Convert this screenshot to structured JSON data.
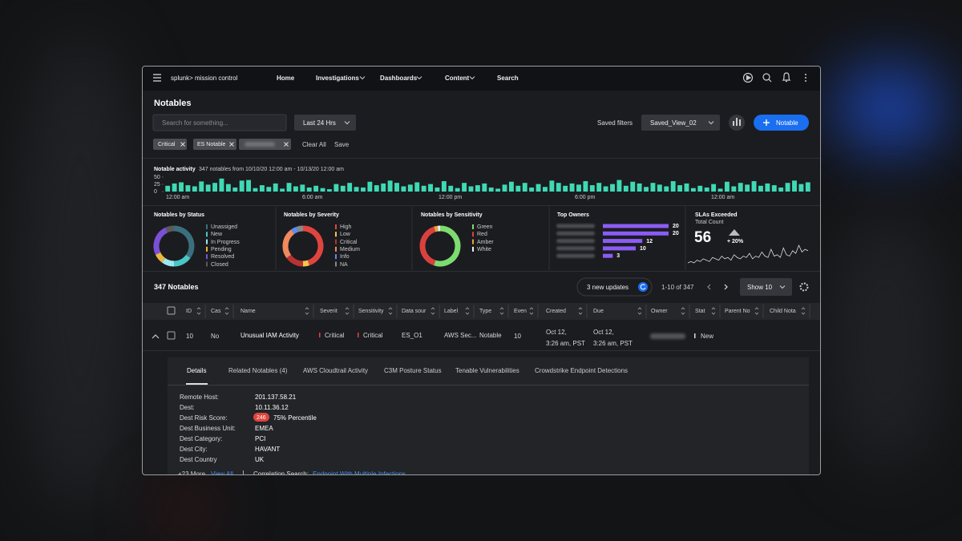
{
  "nav": {
    "brand": "splunk> mission control",
    "items": [
      "Home",
      "Investigations",
      "Dashboards",
      "Content",
      "Search"
    ]
  },
  "header": {
    "title": "Notables",
    "search_placeholder": "Search for something...",
    "time_range": "Last 24 Hrs",
    "saved_filters_label": "Saved filters",
    "saved_view": "Saved_View_02",
    "new_button": "Notable"
  },
  "filters": {
    "chips": [
      "Critical",
      "ES Notable"
    ],
    "clear": "Clear All",
    "save": "Save"
  },
  "chart_data": [
    {
      "type": "bar",
      "title": "Notable activity",
      "subtitle": "347 notables from 10/10/20 12:00 am - 10/13/20 12:00 am",
      "color": "#3fd9b5",
      "ylim": [
        0,
        50
      ],
      "yticks": [
        50,
        25,
        0
      ],
      "x_labels": [
        "12:00 am",
        "6:00 am",
        "12:00 pm",
        "6:00 pm",
        "12:00 am"
      ],
      "values": [
        20,
        28,
        32,
        22,
        18,
        35,
        24,
        30,
        45,
        26,
        14,
        38,
        40,
        12,
        22,
        16,
        28,
        10,
        30,
        18,
        24,
        14,
        20,
        12,
        8,
        26,
        20,
        30,
        16,
        14,
        34,
        22,
        28,
        38,
        30,
        18,
        24,
        32,
        20,
        26,
        14,
        36,
        20,
        12,
        30,
        18,
        22,
        28,
        14,
        10,
        24,
        34,
        20,
        30,
        14,
        26,
        16,
        38,
        30,
        20,
        28,
        24,
        36,
        22,
        30,
        18,
        26,
        40,
        20,
        34,
        28,
        16,
        30,
        24,
        18,
        36,
        22,
        28,
        12,
        20,
        14,
        26,
        10,
        34,
        18,
        30,
        24,
        36,
        20,
        28,
        22,
        14,
        30,
        38,
        26,
        32
      ]
    },
    {
      "type": "pie",
      "title": "Notables by Status",
      "categories": [
        "Unassiged",
        "New",
        "In Progress",
        "Pending",
        "Resolved",
        "Closed"
      ],
      "values": [
        35,
        15,
        10,
        8,
        25,
        7
      ],
      "colors": [
        "#3b6f7d",
        "#49c6c6",
        "#9ee7f0",
        "#e8b93e",
        "#7b4fd6",
        "#5a5a5a"
      ]
    },
    {
      "type": "pie",
      "title": "Notables by Severity",
      "categories": [
        "High",
        "Low",
        "Critical",
        "Medium",
        "Info",
        "NA"
      ],
      "values": [
        45,
        5,
        15,
        25,
        5,
        5
      ],
      "colors": [
        "#e0443e",
        "#f2c94c",
        "#b83232",
        "#f08a5d",
        "#5b8def",
        "#888888"
      ]
    },
    {
      "type": "pie",
      "title": "Notables by Sensitivity",
      "categories": [
        "Green",
        "Red",
        "Amber",
        "White"
      ],
      "values": [
        55,
        40,
        3,
        2
      ],
      "colors": [
        "#7ddc6f",
        "#d9413e",
        "#e8a33e",
        "#eeeeee"
      ]
    },
    {
      "type": "bar",
      "orientation": "horizontal",
      "title": "Top Owners",
      "values": [
        20,
        20,
        12,
        10,
        3
      ],
      "color": "#8b5cf6"
    },
    {
      "type": "line",
      "title": "SLAs Exceeded",
      "subtitle": "Total Count",
      "total": 56,
      "change": {
        "value": 20,
        "label": "+ 20%"
      },
      "color": "#dddddd",
      "values": [
        8,
        9,
        8,
        10,
        9,
        11,
        10,
        9,
        12,
        11,
        10,
        13,
        11,
        12,
        10,
        14,
        12,
        11,
        13,
        12,
        15,
        11,
        13,
        12,
        16,
        13,
        12,
        18,
        13,
        14,
        12,
        19,
        14,
        13,
        17,
        15,
        21,
        16,
        18,
        17
      ]
    }
  ],
  "table": {
    "title": "347 Notables",
    "updates": "3 new updates",
    "pagination": "1-10 of 347",
    "page_size": "Show 10",
    "columns": [
      "ID",
      "Cas",
      "Name",
      "Severit",
      "Sensitivity",
      "Data sour",
      "Label",
      "Type",
      "Even",
      "Created",
      "Due",
      "Owner",
      "Stat",
      "Parent No",
      "Child Nota"
    ],
    "rows": [
      {
        "id": 10,
        "case": "No",
        "name": "Unusual IAM Activity",
        "severity": "Critical",
        "sensitivity": "Critical",
        "data_source": "ES_O1",
        "label": "AWS Sec...",
        "type": "Notable",
        "event": 10,
        "created": [
          "Oct 12,",
          "3:26 am, PST"
        ],
        "due": [
          "Oct 12,",
          "3:26 am, PST"
        ],
        "status": "New"
      }
    ]
  },
  "details": {
    "tabs": [
      "Details",
      "Related Notables (4)",
      "AWS Cloudtrail Activity",
      "C3M Posture Status",
      "Tenable Vulnerabilities",
      "Crowdstrike Endpoint Detections"
    ],
    "fields": [
      {
        "label": "Remote Host:",
        "value": "201.137.58.21"
      },
      {
        "label": "Dest:",
        "value": "10.11.36.12"
      },
      {
        "label": "Dest Risk Score:",
        "score": 246,
        "percentile": "75% Percentile"
      },
      {
        "label": "Dest Business Unit:",
        "value": "EMEA"
      },
      {
        "label": "Dest Category:",
        "value": "PCI"
      },
      {
        "label": "Dest City:",
        "value": "HAVANT"
      },
      {
        "label": "Dest Country",
        "value": "UK"
      }
    ],
    "more": "+23 More",
    "view_all": "View All",
    "correlation_label": "Correlation Search:",
    "correlation_link": "Endpoint With Multiple Infections"
  }
}
